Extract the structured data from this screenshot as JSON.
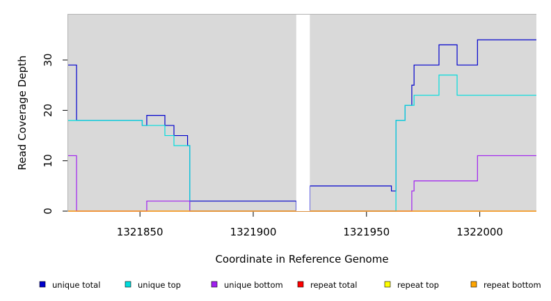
{
  "chart_data": {
    "type": "line",
    "title": "",
    "xlabel": "Coordinate in Reference Genome",
    "ylabel": "Read Coverage Depth",
    "xlim": [
      1321818,
      1322025
    ],
    "ylim": [
      0,
      39
    ],
    "x_ticks": [
      1321850,
      1321900,
      1321950,
      1322000
    ],
    "x_tick_labels": [
      "1321850",
      "1321900",
      "1321950",
      "1322000"
    ],
    "y_ticks": [
      0,
      10,
      20,
      30
    ],
    "y_tick_labels": [
      "0",
      "10",
      "20",
      "30"
    ],
    "step_style": "post",
    "gap": [
      1321919,
      1321925
    ],
    "background": "#d9d9d9",
    "legend_position": "bottom",
    "series": [
      {
        "name": "unique total",
        "color": "#0000cc",
        "points": [
          [
            1321818,
            29
          ],
          [
            1321822,
            18
          ],
          [
            1321851,
            17
          ],
          [
            1321853,
            19
          ],
          [
            1321861,
            17
          ],
          [
            1321865,
            15
          ],
          [
            1321871,
            13
          ],
          [
            1321872,
            2
          ],
          [
            1321919,
            0
          ],
          [
            1321925,
            5
          ],
          [
            1321961,
            4
          ],
          [
            1321963,
            18
          ],
          [
            1321967,
            21
          ],
          [
            1321970,
            25
          ],
          [
            1321971,
            29
          ],
          [
            1321982,
            33
          ],
          [
            1321990,
            29
          ],
          [
            1321999,
            34
          ],
          [
            1322025,
            34
          ]
        ]
      },
      {
        "name": "unique top",
        "color": "#00dddd",
        "points": [
          [
            1321818,
            18
          ],
          [
            1321851,
            17
          ],
          [
            1321861,
            15
          ],
          [
            1321865,
            13
          ],
          [
            1321872,
            0
          ],
          [
            1321925,
            0
          ],
          [
            1321963,
            18
          ],
          [
            1321967,
            21
          ],
          [
            1321971,
            23
          ],
          [
            1321982,
            27
          ],
          [
            1321990,
            23
          ],
          [
            1322025,
            23
          ]
        ]
      },
      {
        "name": "unique bottom",
        "color": "#a020f0",
        "points": [
          [
            1321818,
            11
          ],
          [
            1321822,
            0
          ],
          [
            1321853,
            2
          ],
          [
            1321872,
            0
          ],
          [
            1321970,
            4
          ],
          [
            1321971,
            6
          ],
          [
            1321999,
            11
          ],
          [
            1322025,
            11
          ]
        ]
      },
      {
        "name": "repeat total",
        "color": "#ff0000",
        "points": [
          [
            1321818,
            0
          ],
          [
            1322025,
            0
          ]
        ]
      },
      {
        "name": "repeat top",
        "color": "#ffff00",
        "points": []
      },
      {
        "name": "repeat bottom",
        "color": "#ffa500",
        "points": [
          [
            1321818,
            0
          ],
          [
            1322025,
            0
          ]
        ]
      }
    ]
  }
}
